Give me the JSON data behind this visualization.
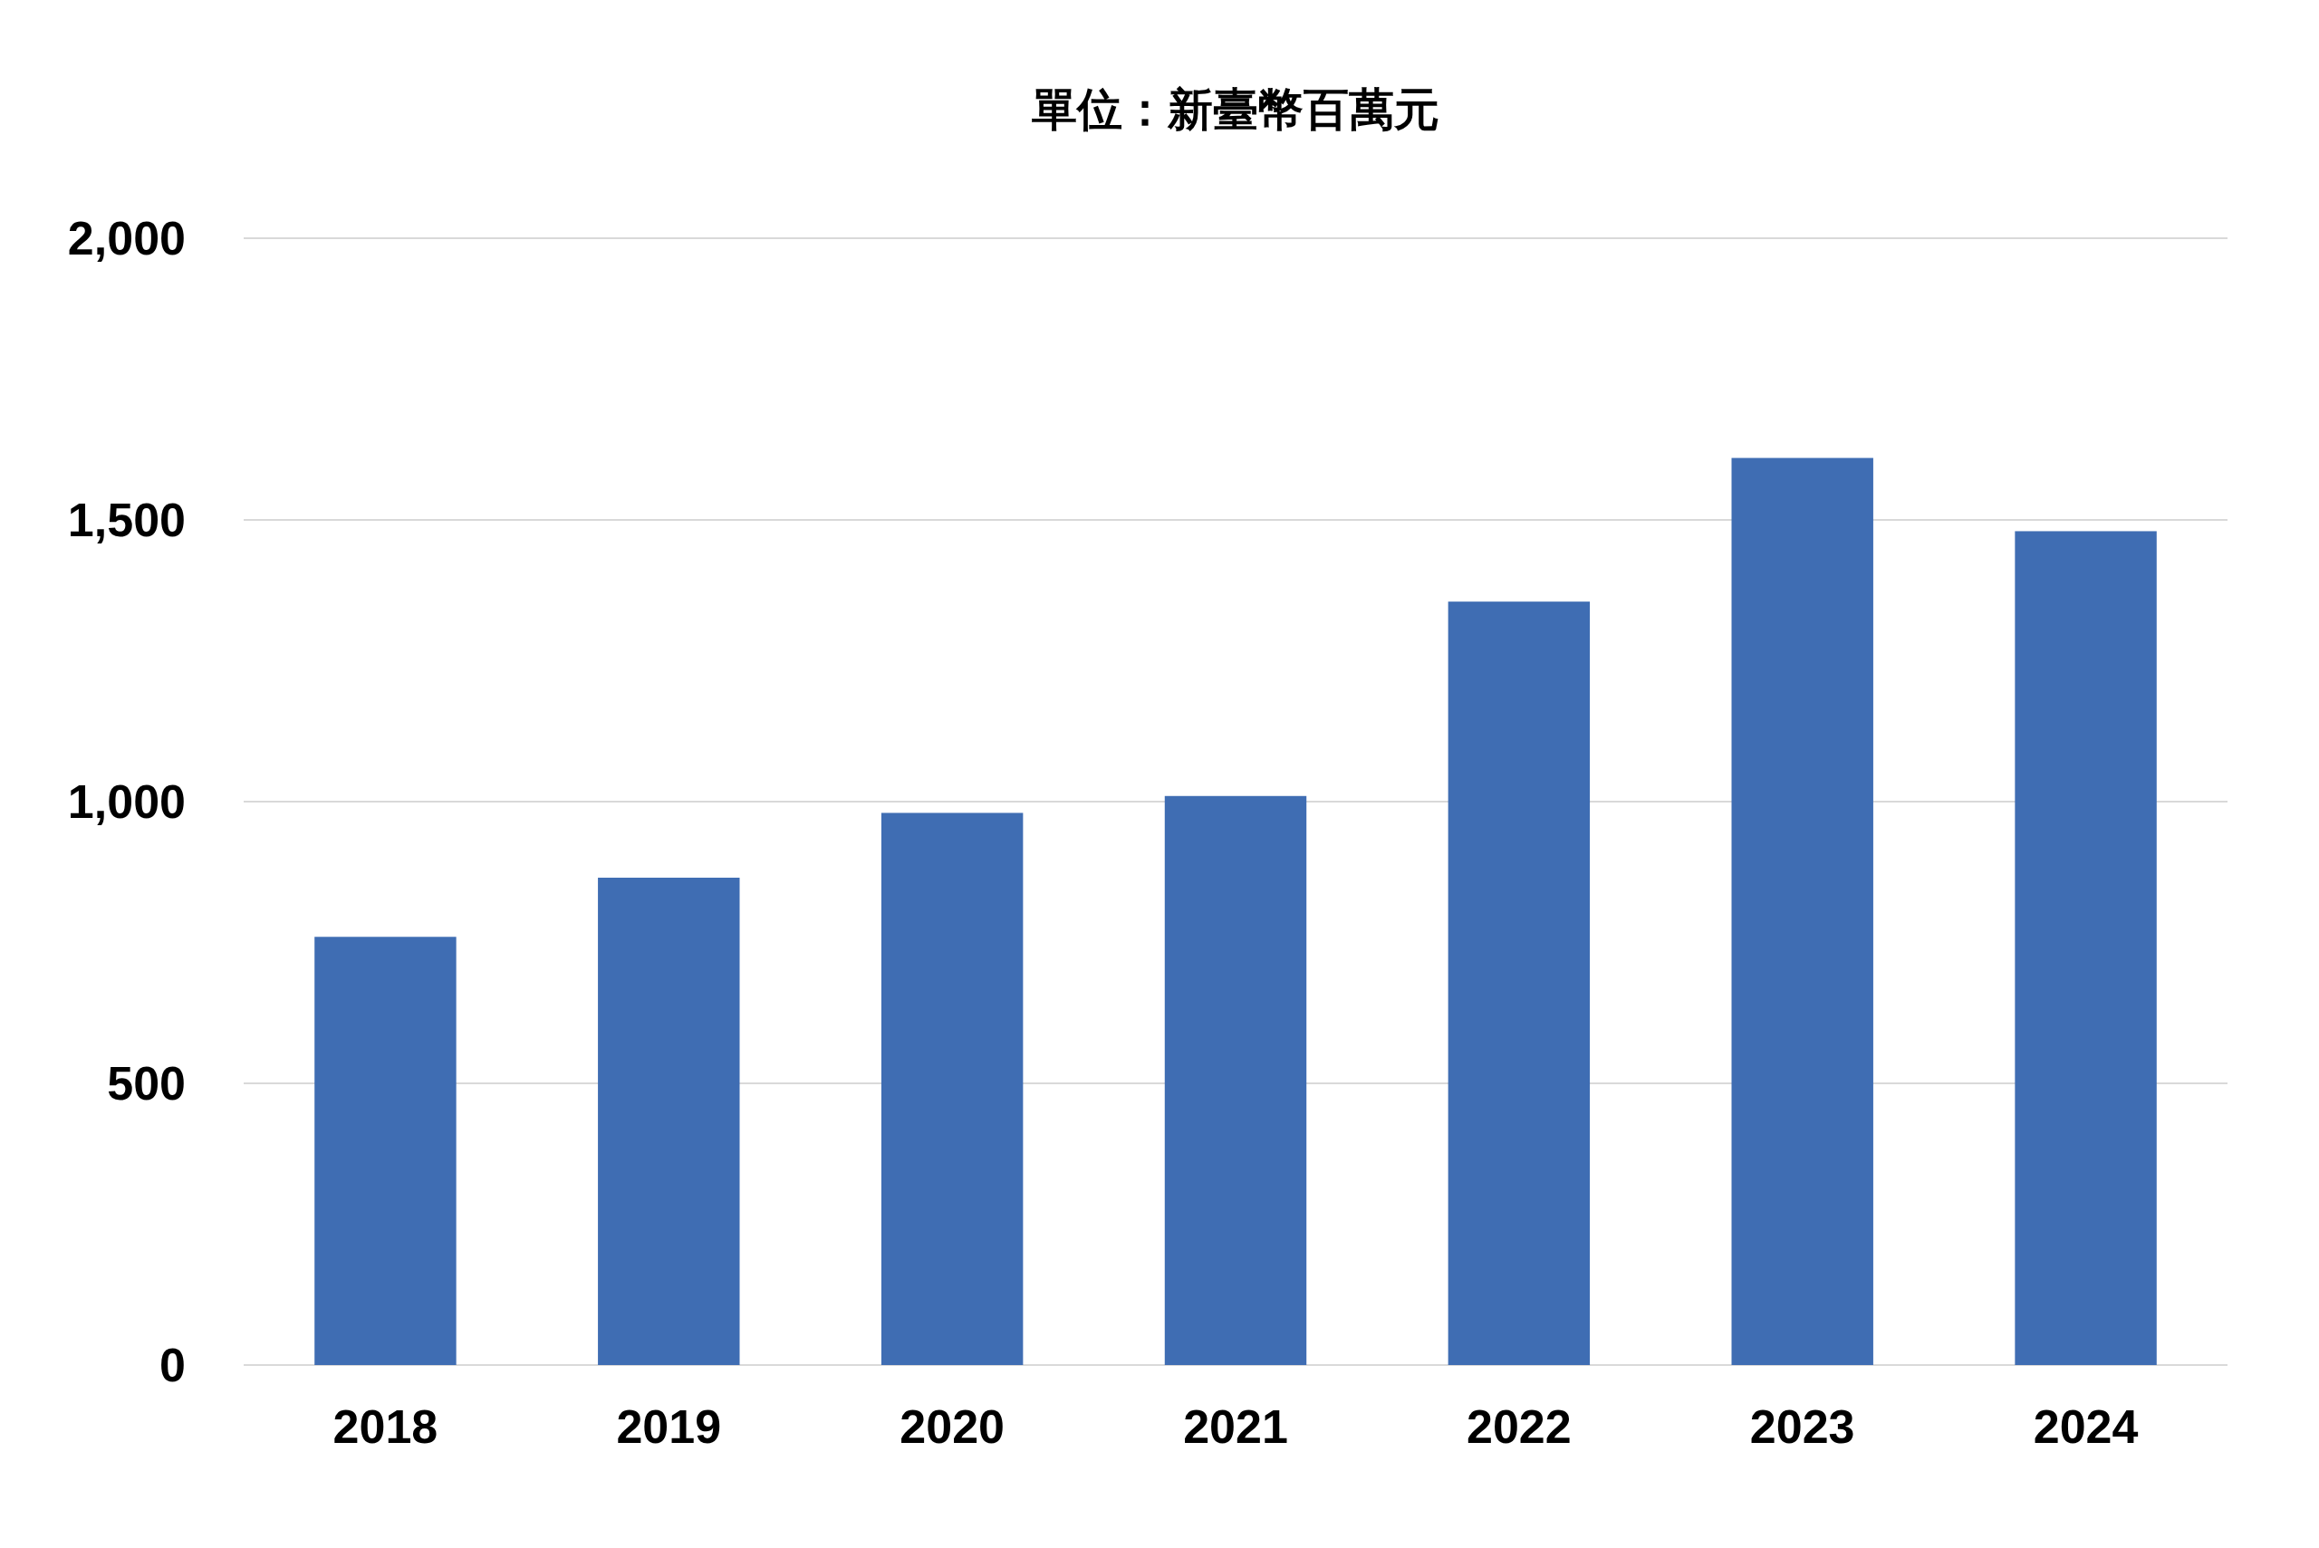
{
  "chart_data": {
    "type": "bar",
    "title": "單位：新臺幣百萬元",
    "categories": [
      "2018",
      "2019",
      "2020",
      "2021",
      "2022",
      "2023",
      "2024"
    ],
    "values": [
      760,
      865,
      980,
      1010,
      1355,
      1610,
      1480
    ],
    "color": "#3f6db3",
    "ylim": [
      0,
      2000
    ],
    "yticks": [
      0,
      {
        "value": 500,
        "label": "500"
      },
      {
        "value": 1000,
        "label": "1,000"
      },
      {
        "value": 1500,
        "label": "1,500"
      },
      {
        "value": 2000,
        "label": "2,000"
      }
    ],
    "grid": "y"
  }
}
